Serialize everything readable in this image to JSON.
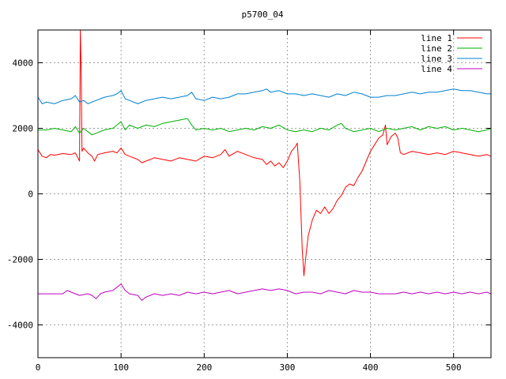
{
  "chart_data": {
    "type": "line",
    "title": "p5700_04",
    "xlabel": "",
    "ylabel": "",
    "xlim": [
      0,
      545
    ],
    "ylim": [
      -5000,
      5000
    ],
    "xticks": [
      0,
      100,
      200,
      300,
      400,
      500
    ],
    "yticks": [
      -4000,
      -2000,
      0,
      2000,
      4000
    ],
    "grid": true,
    "legend_position": "top-right",
    "series": [
      {
        "name": "line 1",
        "color": "#ff0000",
        "points": [
          [
            0,
            1350
          ],
          [
            5,
            1150
          ],
          [
            10,
            1100
          ],
          [
            15,
            1200
          ],
          [
            20,
            1180
          ],
          [
            30,
            1230
          ],
          [
            40,
            1200
          ],
          [
            45,
            1250
          ],
          [
            48,
            1100
          ],
          [
            50,
            1000
          ],
          [
            51,
            5000
          ],
          [
            52,
            3700
          ],
          [
            53,
            1300
          ],
          [
            55,
            1400
          ],
          [
            60,
            1250
          ],
          [
            65,
            1150
          ],
          [
            68,
            1000
          ],
          [
            72,
            1200
          ],
          [
            80,
            1250
          ],
          [
            90,
            1300
          ],
          [
            95,
            1250
          ],
          [
            100,
            1400
          ],
          [
            105,
            1200
          ],
          [
            110,
            1150
          ],
          [
            120,
            1050
          ],
          [
            125,
            950
          ],
          [
            130,
            1000
          ],
          [
            140,
            1100
          ],
          [
            150,
            1050
          ],
          [
            160,
            1000
          ],
          [
            170,
            1100
          ],
          [
            180,
            1050
          ],
          [
            190,
            1000
          ],
          [
            200,
            1150
          ],
          [
            210,
            1100
          ],
          [
            220,
            1200
          ],
          [
            225,
            1350
          ],
          [
            230,
            1150
          ],
          [
            240,
            1300
          ],
          [
            250,
            1200
          ],
          [
            260,
            1100
          ],
          [
            270,
            1050
          ],
          [
            275,
            900
          ],
          [
            280,
            1000
          ],
          [
            285,
            850
          ],
          [
            290,
            950
          ],
          [
            295,
            800
          ],
          [
            300,
            1000
          ],
          [
            305,
            1300
          ],
          [
            310,
            1450
          ],
          [
            312,
            1550
          ],
          [
            315,
            400
          ],
          [
            318,
            -1700
          ],
          [
            320,
            -2500
          ],
          [
            322,
            -2000
          ],
          [
            325,
            -1300
          ],
          [
            330,
            -800
          ],
          [
            335,
            -500
          ],
          [
            340,
            -600
          ],
          [
            345,
            -400
          ],
          [
            350,
            -600
          ],
          [
            355,
            -450
          ],
          [
            360,
            -200
          ],
          [
            365,
            -50
          ],
          [
            370,
            200
          ],
          [
            375,
            300
          ],
          [
            380,
            250
          ],
          [
            385,
            500
          ],
          [
            390,
            700
          ],
          [
            395,
            1000
          ],
          [
            400,
            1300
          ],
          [
            405,
            1500
          ],
          [
            410,
            1700
          ],
          [
            415,
            1800
          ],
          [
            418,
            2100
          ],
          [
            420,
            1500
          ],
          [
            425,
            1750
          ],
          [
            430,
            1850
          ],
          [
            433,
            1700
          ],
          [
            436,
            1250
          ],
          [
            440,
            1200
          ],
          [
            450,
            1300
          ],
          [
            460,
            1250
          ],
          [
            470,
            1200
          ],
          [
            480,
            1250
          ],
          [
            490,
            1200
          ],
          [
            500,
            1300
          ],
          [
            510,
            1250
          ],
          [
            520,
            1200
          ],
          [
            530,
            1150
          ],
          [
            540,
            1200
          ],
          [
            545,
            1150
          ]
        ]
      },
      {
        "name": "line 2",
        "color": "#00b000",
        "points": [
          [
            0,
            1950
          ],
          [
            10,
            1950
          ],
          [
            20,
            2000
          ],
          [
            30,
            1950
          ],
          [
            40,
            1900
          ],
          [
            45,
            2050
          ],
          [
            50,
            1850
          ],
          [
            55,
            2000
          ],
          [
            60,
            1900
          ],
          [
            65,
            1800
          ],
          [
            70,
            1850
          ],
          [
            80,
            1950
          ],
          [
            90,
            2000
          ],
          [
            95,
            2100
          ],
          [
            100,
            2200
          ],
          [
            105,
            1950
          ],
          [
            110,
            2100
          ],
          [
            120,
            2000
          ],
          [
            130,
            2100
          ],
          [
            140,
            2050
          ],
          [
            150,
            2150
          ],
          [
            160,
            2200
          ],
          [
            170,
            2250
          ],
          [
            180,
            2300
          ],
          [
            185,
            2100
          ],
          [
            190,
            1950
          ],
          [
            200,
            2000
          ],
          [
            210,
            1950
          ],
          [
            220,
            2000
          ],
          [
            230,
            1900
          ],
          [
            240,
            1950
          ],
          [
            250,
            2000
          ],
          [
            260,
            1950
          ],
          [
            270,
            2050
          ],
          [
            280,
            2000
          ],
          [
            290,
            2100
          ],
          [
            300,
            1950
          ],
          [
            310,
            1900
          ],
          [
            320,
            1950
          ],
          [
            330,
            1900
          ],
          [
            340,
            2000
          ],
          [
            350,
            1950
          ],
          [
            360,
            2100
          ],
          [
            365,
            2150
          ],
          [
            370,
            2000
          ],
          [
            380,
            1900
          ],
          [
            390,
            1950
          ],
          [
            400,
            2000
          ],
          [
            410,
            1900
          ],
          [
            420,
            2000
          ],
          [
            430,
            1950
          ],
          [
            440,
            2000
          ],
          [
            450,
            2050
          ],
          [
            460,
            1950
          ],
          [
            470,
            2050
          ],
          [
            480,
            2000
          ],
          [
            490,
            2050
          ],
          [
            500,
            1950
          ],
          [
            510,
            2000
          ],
          [
            520,
            1950
          ],
          [
            530,
            1900
          ],
          [
            540,
            1950
          ],
          [
            545,
            2000
          ]
        ]
      },
      {
        "name": "line 3",
        "color": "#0080d0",
        "points": [
          [
            0,
            2950
          ],
          [
            5,
            2750
          ],
          [
            10,
            2800
          ],
          [
            20,
            2750
          ],
          [
            30,
            2850
          ],
          [
            40,
            2900
          ],
          [
            45,
            3000
          ],
          [
            50,
            2800
          ],
          [
            55,
            2850
          ],
          [
            60,
            2750
          ],
          [
            70,
            2850
          ],
          [
            80,
            2950
          ],
          [
            90,
            3000
          ],
          [
            95,
            3050
          ],
          [
            100,
            3150
          ],
          [
            105,
            2900
          ],
          [
            110,
            2850
          ],
          [
            120,
            2750
          ],
          [
            130,
            2850
          ],
          [
            140,
            2900
          ],
          [
            150,
            2950
          ],
          [
            160,
            2900
          ],
          [
            170,
            2950
          ],
          [
            180,
            3000
          ],
          [
            185,
            3100
          ],
          [
            190,
            2900
          ],
          [
            200,
            2850
          ],
          [
            210,
            2950
          ],
          [
            220,
            2900
          ],
          [
            230,
            2950
          ],
          [
            240,
            3050
          ],
          [
            250,
            3050
          ],
          [
            260,
            3100
          ],
          [
            270,
            3150
          ],
          [
            275,
            3200
          ],
          [
            280,
            3100
          ],
          [
            290,
            3150
          ],
          [
            300,
            3050
          ],
          [
            310,
            3050
          ],
          [
            320,
            3000
          ],
          [
            330,
            3050
          ],
          [
            340,
            3000
          ],
          [
            350,
            2950
          ],
          [
            360,
            3050
          ],
          [
            370,
            3000
          ],
          [
            380,
            3100
          ],
          [
            390,
            3050
          ],
          [
            400,
            2950
          ],
          [
            410,
            2950
          ],
          [
            420,
            3000
          ],
          [
            430,
            3000
          ],
          [
            440,
            3050
          ],
          [
            450,
            3100
          ],
          [
            460,
            3050
          ],
          [
            470,
            3100
          ],
          [
            480,
            3100
          ],
          [
            490,
            3150
          ],
          [
            500,
            3200
          ],
          [
            510,
            3150
          ],
          [
            520,
            3150
          ],
          [
            530,
            3100
          ],
          [
            540,
            3050
          ],
          [
            545,
            3050
          ]
        ]
      },
      {
        "name": "line 4",
        "color": "#c000c0",
        "points": [
          [
            0,
            -3050
          ],
          [
            10,
            -3050
          ],
          [
            20,
            -3050
          ],
          [
            30,
            -3050
          ],
          [
            35,
            -2950
          ],
          [
            40,
            -3000
          ],
          [
            50,
            -3100
          ],
          [
            60,
            -3050
          ],
          [
            65,
            -3100
          ],
          [
            70,
            -3200
          ],
          [
            75,
            -3050
          ],
          [
            80,
            -3000
          ],
          [
            90,
            -2950
          ],
          [
            95,
            -2850
          ],
          [
            100,
            -2750
          ],
          [
            105,
            -2950
          ],
          [
            110,
            -3050
          ],
          [
            120,
            -3100
          ],
          [
            125,
            -3250
          ],
          [
            130,
            -3150
          ],
          [
            140,
            -3050
          ],
          [
            150,
            -3100
          ],
          [
            160,
            -3050
          ],
          [
            170,
            -3100
          ],
          [
            180,
            -3000
          ],
          [
            190,
            -3050
          ],
          [
            200,
            -3000
          ],
          [
            210,
            -3050
          ],
          [
            220,
            -3000
          ],
          [
            230,
            -2950
          ],
          [
            240,
            -3050
          ],
          [
            250,
            -3000
          ],
          [
            260,
            -2950
          ],
          [
            270,
            -2900
          ],
          [
            280,
            -2950
          ],
          [
            290,
            -2900
          ],
          [
            300,
            -2950
          ],
          [
            310,
            -3050
          ],
          [
            320,
            -3000
          ],
          [
            330,
            -3000
          ],
          [
            340,
            -3050
          ],
          [
            350,
            -2950
          ],
          [
            360,
            -3000
          ],
          [
            370,
            -3050
          ],
          [
            380,
            -2950
          ],
          [
            390,
            -3000
          ],
          [
            400,
            -3000
          ],
          [
            410,
            -3050
          ],
          [
            420,
            -3050
          ],
          [
            430,
            -3050
          ],
          [
            440,
            -3000
          ],
          [
            450,
            -3050
          ],
          [
            460,
            -3000
          ],
          [
            470,
            -3050
          ],
          [
            480,
            -3000
          ],
          [
            490,
            -3050
          ],
          [
            500,
            -3000
          ],
          [
            510,
            -3050
          ],
          [
            520,
            -3000
          ],
          [
            530,
            -3050
          ],
          [
            540,
            -3000
          ],
          [
            545,
            -3050
          ]
        ]
      }
    ]
  }
}
